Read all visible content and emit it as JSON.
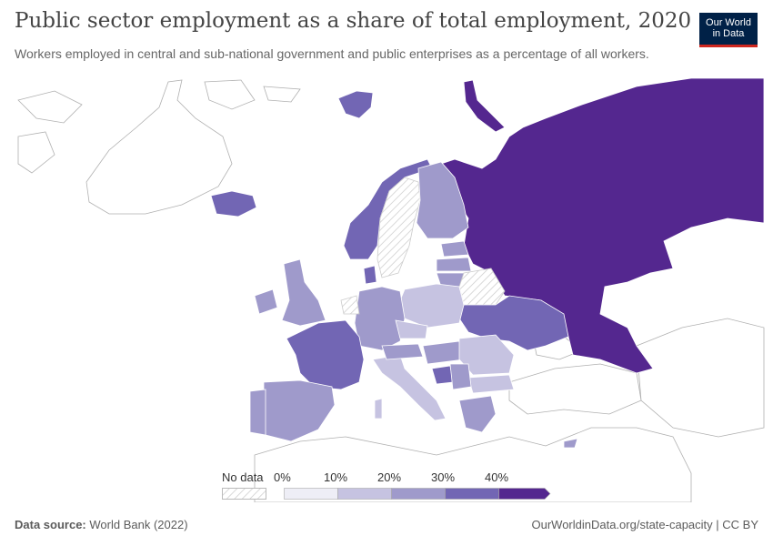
{
  "title": "Public sector employment as a share of total employment, 2020",
  "subtitle": "Workers employed in central and sub-national government and public enterprises as a percentage of all workers.",
  "logo": {
    "line1": "Our World",
    "line2": "in Data"
  },
  "legend": {
    "no_data_label": "No data",
    "ticks": [
      "0%",
      "10%",
      "20%",
      "30%",
      "40%"
    ],
    "colors": [
      "#eeeef6",
      "#c6c3e1",
      "#9f9acb",
      "#7266b4",
      "#54278f"
    ]
  },
  "chart_data": {
    "type": "choropleth",
    "metric": "Public sector employment as a share of total employment (%)",
    "year": 2020,
    "bins": [
      "0-10",
      "10-20",
      "20-30",
      "30-40",
      "40+"
    ],
    "countries": [
      {
        "name": "Russia",
        "bin": "40+"
      },
      {
        "name": "Norway",
        "bin": "30-40"
      },
      {
        "name": "Sweden",
        "bin": "no data"
      },
      {
        "name": "Finland",
        "bin": "20-30"
      },
      {
        "name": "Iceland",
        "bin": "30-40"
      },
      {
        "name": "Denmark",
        "bin": "30-40"
      },
      {
        "name": "United Kingdom",
        "bin": "20-30"
      },
      {
        "name": "Ireland",
        "bin": "20-30"
      },
      {
        "name": "France",
        "bin": "30-40"
      },
      {
        "name": "Spain",
        "bin": "20-30"
      },
      {
        "name": "Portugal",
        "bin": "20-30"
      },
      {
        "name": "Germany",
        "bin": "20-30"
      },
      {
        "name": "Poland",
        "bin": "10-20"
      },
      {
        "name": "Belarus",
        "bin": "no data"
      },
      {
        "name": "Ukraine",
        "bin": "30-40"
      },
      {
        "name": "Italy",
        "bin": "10-20"
      },
      {
        "name": "Romania",
        "bin": "10-20"
      },
      {
        "name": "Bulgaria",
        "bin": "10-20"
      },
      {
        "name": "Greece",
        "bin": "20-30"
      },
      {
        "name": "Estonia",
        "bin": "20-30"
      },
      {
        "name": "Latvia",
        "bin": "20-30"
      },
      {
        "name": "Lithuania",
        "bin": "20-30"
      },
      {
        "name": "Czechia",
        "bin": "10-20"
      },
      {
        "name": "Hungary",
        "bin": "20-30"
      },
      {
        "name": "Bosnia and Herzegovina",
        "bin": "30-40"
      },
      {
        "name": "Netherlands",
        "bin": "no data"
      }
    ]
  },
  "footer": {
    "source_label": "Data source:",
    "source_value": "World Bank (2022)",
    "url": "OurWorldinData.org/state-capacity | CC BY"
  }
}
